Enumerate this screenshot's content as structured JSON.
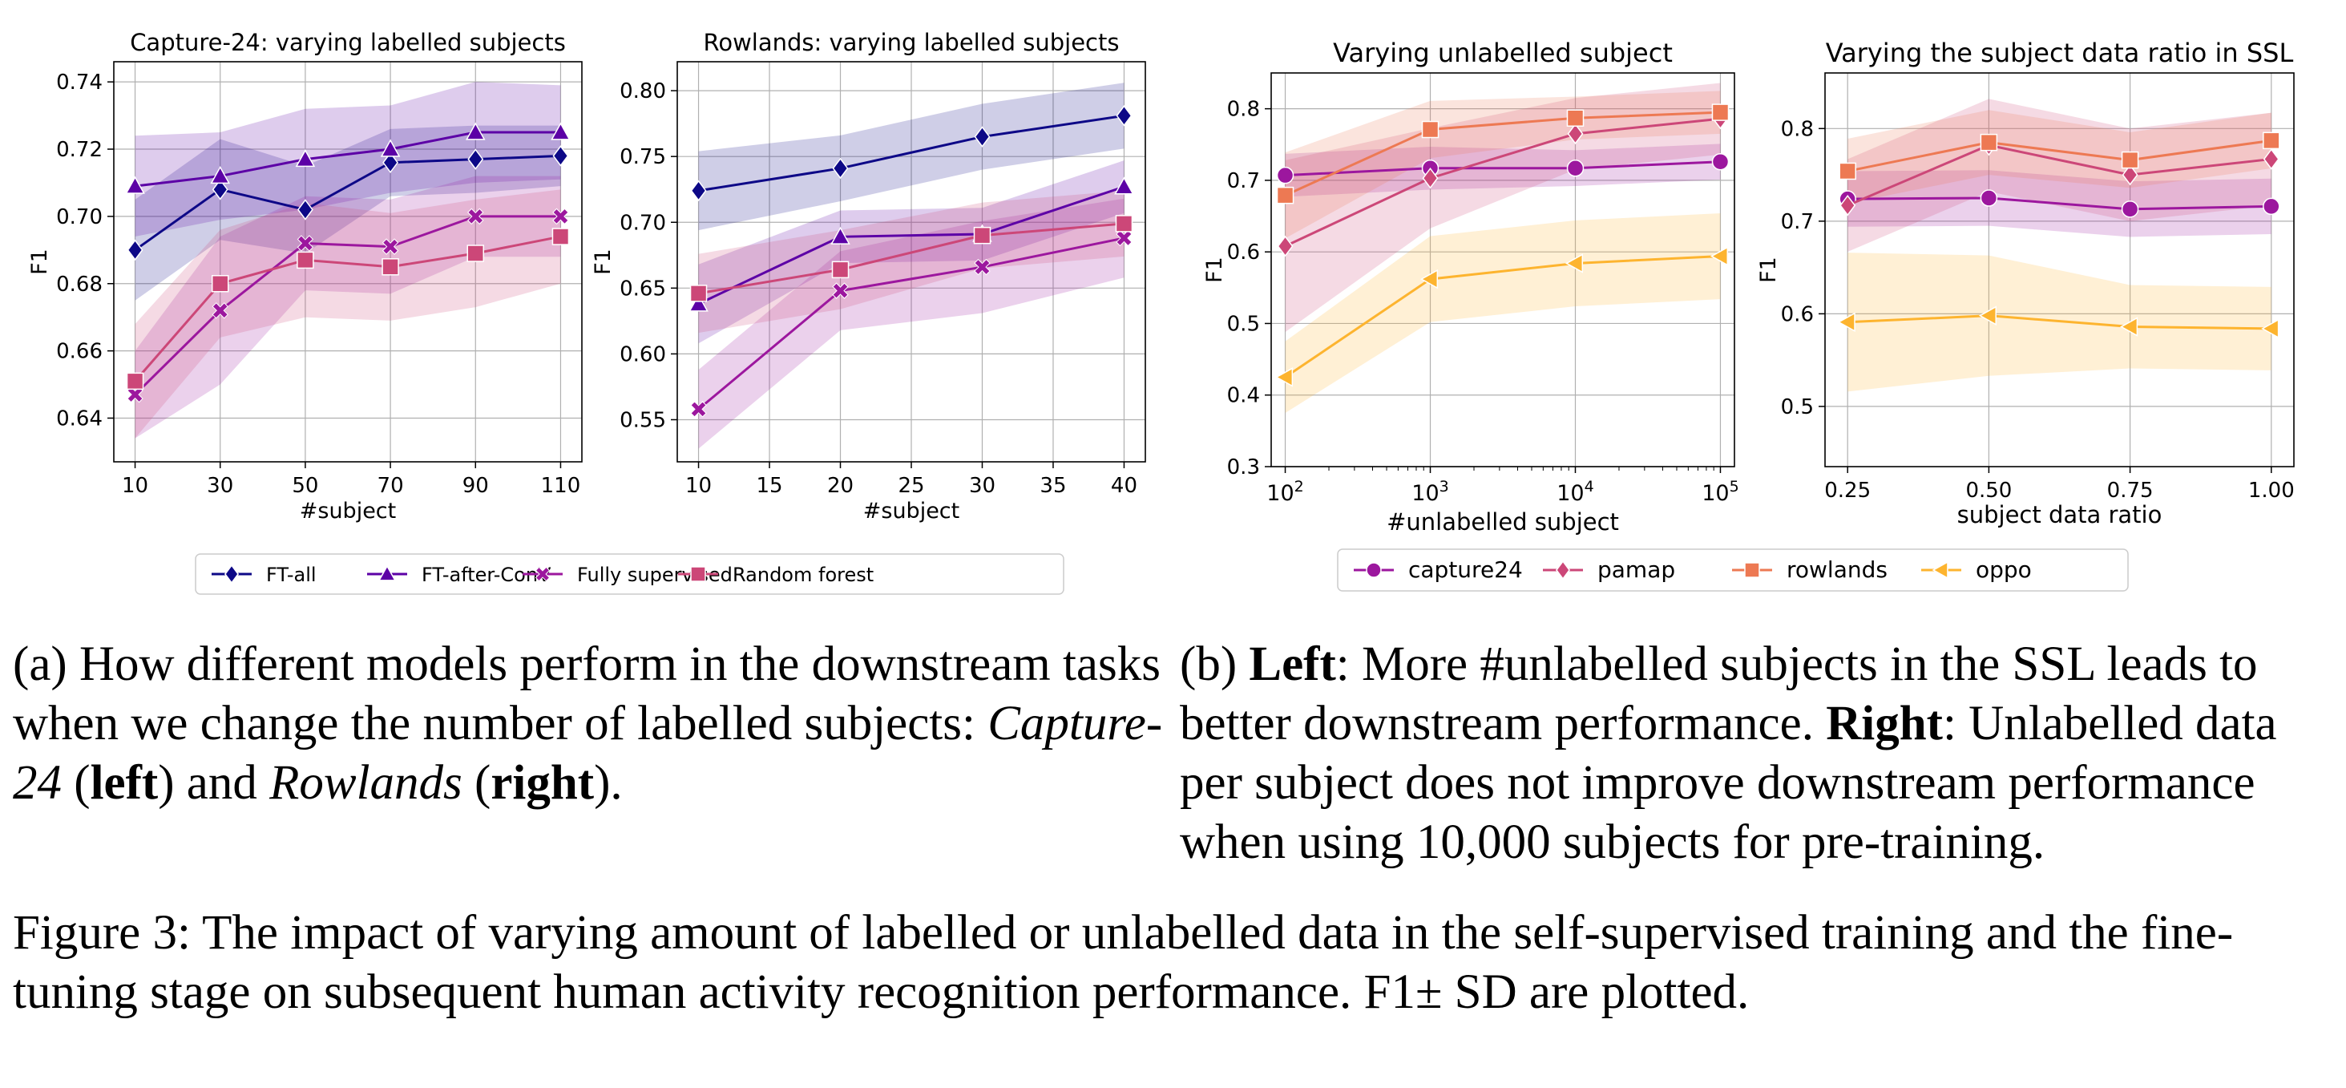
{
  "legend_a": [
    "FT-all",
    "FT-after-ConV",
    "Fully supervised",
    "Random forest"
  ],
  "legend_b": [
    "capture24",
    "pamap",
    "rowlands",
    "oppo"
  ],
  "colors": {
    "FT-all": "#0d0887",
    "FT-after-ConV": "#5c01a6",
    "Fully supervised": "#9c179e",
    "Random forest": "#cc4778",
    "capture24": "#9c179e",
    "pamap": "#cc4778",
    "rowlands": "#ed7953",
    "oppo": "#fdb42f"
  },
  "chart_data": [
    {
      "type": "line",
      "title": "Capture-24: varying labelled subjects",
      "xlabel": "#subject",
      "ylabel": "F1",
      "x": [
        10,
        30,
        50,
        70,
        90,
        110
      ],
      "xticks": [
        10,
        30,
        50,
        70,
        90,
        110
      ],
      "xlim": [
        5,
        115
      ],
      "ylim": [
        0.627,
        0.746
      ],
      "yticks": [
        "0.64",
        "0.66",
        "0.68",
        "0.70",
        "0.72",
        "0.74"
      ],
      "series": [
        {
          "name": "FT-all",
          "values": [
            0.69,
            0.708,
            0.702,
            0.716,
            0.717,
            0.718
          ],
          "sd": [
            0.015,
            0.015,
            0.013,
            0.01,
            0.01,
            0.009
          ]
        },
        {
          "name": "FT-after-ConV",
          "values": [
            0.709,
            0.712,
            0.717,
            0.72,
            0.725,
            0.725
          ],
          "sd": [
            0.015,
            0.013,
            0.015,
            0.013,
            0.015,
            0.014
          ]
        },
        {
          "name": "Fully supervised",
          "values": [
            0.647,
            0.672,
            0.692,
            0.691,
            0.7,
            0.7
          ],
          "sd": [
            0.013,
            0.022,
            0.014,
            0.014,
            0.012,
            0.012
          ]
        },
        {
          "name": "Random forest",
          "values": [
            0.651,
            0.68,
            0.687,
            0.685,
            0.689,
            0.694
          ],
          "sd": [
            0.017,
            0.016,
            0.017,
            0.016,
            0.016,
            0.014
          ]
        }
      ]
    },
    {
      "type": "line",
      "title": "Rowlands: varying labelled subjects",
      "xlabel": "#subject",
      "ylabel": "F1",
      "x": [
        10,
        20,
        30,
        40
      ],
      "xticks": [
        10,
        15,
        20,
        25,
        30,
        35,
        40
      ],
      "xlim": [
        8.5,
        41.5
      ],
      "ylim": [
        0.518,
        0.822
      ],
      "yticks": [
        "0.55",
        "0.60",
        "0.65",
        "0.70",
        "0.75",
        "0.80"
      ],
      "series": [
        {
          "name": "FT-all",
          "values": [
            0.724,
            0.741,
            0.765,
            0.781
          ],
          "sd": [
            0.03,
            0.025,
            0.025,
            0.025
          ]
        },
        {
          "name": "FT-after-ConV",
          "values": [
            0.638,
            0.689,
            0.691,
            0.727
          ],
          "sd": [
            0.03,
            0.02,
            0.02,
            0.02
          ]
        },
        {
          "name": "Fully supervised",
          "values": [
            0.558,
            0.648,
            0.666,
            0.688
          ],
          "sd": [
            0.03,
            0.03,
            0.035,
            0.03
          ]
        },
        {
          "name": "Random forest",
          "values": [
            0.646,
            0.664,
            0.69,
            0.699
          ],
          "sd": [
            0.03,
            0.03,
            0.025,
            0.025
          ]
        }
      ]
    },
    {
      "type": "line",
      "title": "Varying unlabelled subject",
      "xlabel": "#unlabelled subject",
      "ylabel": "F1",
      "xscale": "log",
      "x": [
        100,
        1000,
        10000,
        100000
      ],
      "xticks": [
        "10^2",
        "10^3",
        "10^4",
        "10^5"
      ],
      "xlim": [
        80,
        125000
      ],
      "ylim": [
        0.3,
        0.85
      ],
      "yticks": [
        "0.3",
        "0.4",
        "0.5",
        "0.6",
        "0.7",
        "0.8"
      ],
      "series": [
        {
          "name": "capture24",
          "values": [
            0.707,
            0.717,
            0.717,
            0.726
          ],
          "sd": [
            0.03,
            0.03,
            0.025,
            0.025
          ]
        },
        {
          "name": "pamap",
          "values": [
            0.608,
            0.703,
            0.765,
            0.786
          ],
          "sd": [
            0.12,
            0.07,
            0.05,
            0.05
          ]
        },
        {
          "name": "rowlands",
          "values": [
            0.679,
            0.771,
            0.787,
            0.795
          ],
          "sd": [
            0.06,
            0.04,
            0.03,
            0.03
          ]
        },
        {
          "name": "oppo",
          "values": [
            0.425,
            0.562,
            0.584,
            0.594
          ],
          "sd": [
            0.05,
            0.06,
            0.06,
            0.06
          ]
        }
      ]
    },
    {
      "type": "line",
      "title": "Varying the subject data ratio in SSL",
      "xlabel": "subject data ratio",
      "ylabel": "F1",
      "x": [
        0.25,
        0.5,
        0.75,
        1.0
      ],
      "xticks": [
        "0.25",
        "0.50",
        "0.75",
        "1.00"
      ],
      "xlim": [
        0.21,
        1.04
      ],
      "ylim": [
        0.435,
        0.86
      ],
      "yticks": [
        "0.5",
        "0.6",
        "0.7",
        "0.8"
      ],
      "series": [
        {
          "name": "capture24",
          "values": [
            0.724,
            0.725,
            0.713,
            0.716
          ],
          "sd": [
            0.03,
            0.03,
            0.03,
            0.03
          ]
        },
        {
          "name": "pamap",
          "values": [
            0.717,
            0.782,
            0.75,
            0.767
          ],
          "sd": [
            0.05,
            0.05,
            0.05,
            0.05
          ]
        },
        {
          "name": "rowlands",
          "values": [
            0.754,
            0.785,
            0.766,
            0.787
          ],
          "sd": [
            0.035,
            0.035,
            0.03,
            0.03
          ]
        },
        {
          "name": "oppo",
          "values": [
            0.591,
            0.598,
            0.586,
            0.584
          ],
          "sd": [
            0.075,
            0.065,
            0.045,
            0.045
          ]
        }
      ]
    }
  ],
  "captions": {
    "a_prefix": "(a) How different models perform in the downstream tasks when we change the number of labelled subjects: ",
    "a_cap24": "Capture-24",
    "a_paren_open_1": " (",
    "a_left": "left",
    "a_mid": ") and ",
    "a_rowlands": "Rowlands",
    "a_paren_open_2": " (",
    "a_right": "right",
    "a_end": ").",
    "b_prefix": "(b) ",
    "b_left": "Left",
    "b_text1": ": More #unlabelled subjects in the SSL leads to better downstream performance. ",
    "b_right": "Right",
    "b_text2": ": Unlabelled data per subject does not improve downstream performance when using 10,000 subjects for pre-training.",
    "figure": "Figure 3: The impact of varying amount of labelled or unlabelled data in the self-supervised training and the fine-tuning stage on subsequent human activity recognition performance. F1± SD are plotted."
  }
}
